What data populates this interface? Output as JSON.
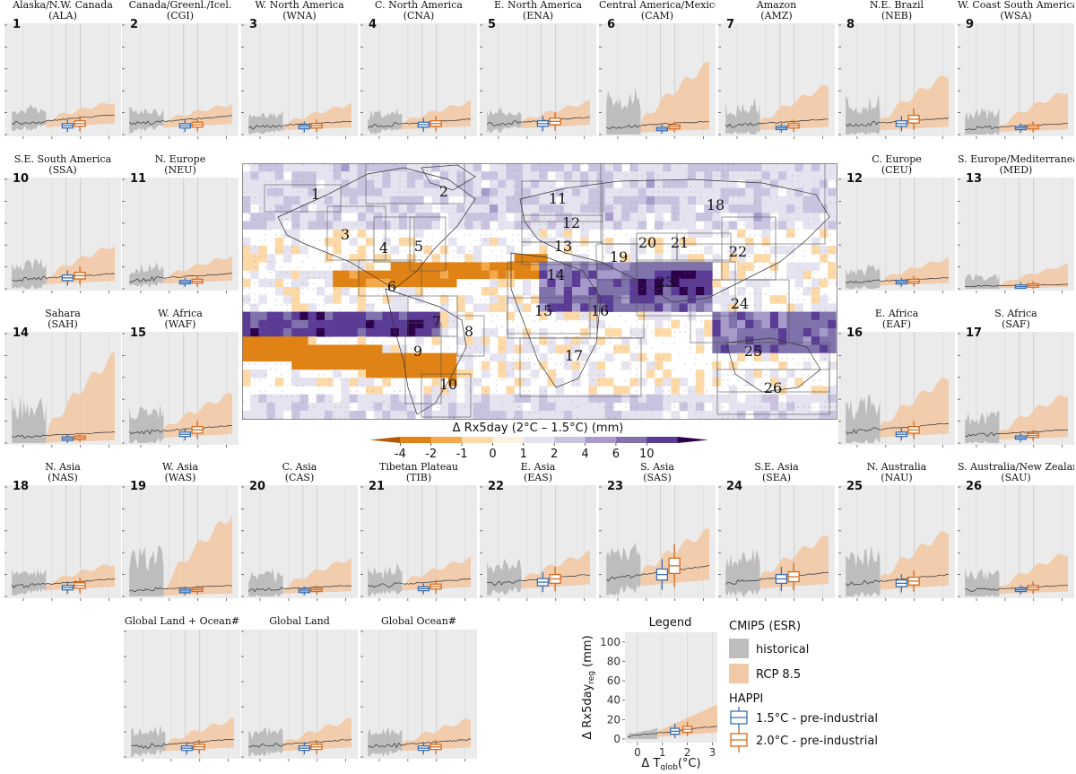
{
  "regions": [
    {
      "num": "1",
      "name": "Alaska/N.W. Canada",
      "code": "(ALA)"
    },
    {
      "num": "2",
      "name": "Canada/Greenl./Icel.",
      "code": "(CGI)"
    },
    {
      "num": "3",
      "name": "W. North America",
      "code": "(WNA)"
    },
    {
      "num": "4",
      "name": "C. North America",
      "code": "(CNA)"
    },
    {
      "num": "5",
      "name": "E. North America",
      "code": "(ENA)"
    },
    {
      "num": "6",
      "name": "Central America/Mexico",
      "code": "(CAM)"
    },
    {
      "num": "7",
      "name": "Amazon",
      "code": "(AMZ)"
    },
    {
      "num": "8",
      "name": "N.E. Brazil",
      "code": "(NEB)"
    },
    {
      "num": "9",
      "name": "W. Coast South America",
      "code": "(WSA)"
    },
    {
      "num": "10",
      "name": "S.E. South America",
      "code": "(SSA)"
    },
    {
      "num": "11",
      "name": "N. Europe",
      "code": "(NEU)"
    },
    {
      "num": "12",
      "name": "C. Europe",
      "code": "(CEU)"
    },
    {
      "num": "13",
      "name": "S. Europe/Mediterranean",
      "code": "(MED)"
    },
    {
      "num": "14",
      "name": "Sahara",
      "code": "(SAH)"
    },
    {
      "num": "15",
      "name": "W. Africa",
      "code": "(WAF)"
    },
    {
      "num": "16",
      "name": "E. Africa",
      "code": "(EAF)"
    },
    {
      "num": "17",
      "name": "S. Africa",
      "code": "(SAF)"
    },
    {
      "num": "18",
      "name": "N. Asia",
      "code": "(NAS)"
    },
    {
      "num": "19",
      "name": "W. Asia",
      "code": "(WAS)"
    },
    {
      "num": "20",
      "name": "C. Asia",
      "code": "(CAS)"
    },
    {
      "num": "21",
      "name": "Tibetan Plateau",
      "code": "(TIB)"
    },
    {
      "num": "22",
      "name": "E. Asia",
      "code": "(EAS)"
    },
    {
      "num": "23",
      "name": "S. Asia",
      "code": "(SAS)"
    },
    {
      "num": "24",
      "name": "S.E. Asia",
      "code": "(SEA)"
    },
    {
      "num": "25",
      "name": "N. Australia",
      "code": "(NAU)"
    },
    {
      "num": "26",
      "name": "S. Australia/New Zealand",
      "code": "(SAU)"
    }
  ],
  "global_panels": [
    "Global Land + Ocean#",
    "Global Land",
    "Global Ocean#"
  ],
  "map": {
    "colorbar_title": "Δ Rx5day  (2°C – 1.5°C) (mm)",
    "colorbar_ticks": [
      "-4",
      "-2",
      "-1",
      "0",
      "1",
      "2",
      "4",
      "6",
      "10"
    ],
    "colorbar_colors": [
      "#b35806",
      "#e08214",
      "#f5a94a",
      "#fdd9a8",
      "#fcf0e0",
      "#e6e3f0",
      "#c9c3e0",
      "#a79bcc",
      "#8073ac",
      "#5a3b96",
      "#2d004b"
    ],
    "region_labels": [
      "1",
      "2",
      "3",
      "4",
      "5",
      "6",
      "7",
      "8",
      "9",
      "10",
      "11",
      "12",
      "13",
      "14",
      "15",
      "16",
      "17",
      "18",
      "19",
      "20",
      "21",
      "22",
      "23",
      "24",
      "25",
      "26"
    ]
  },
  "legend": {
    "title": "Legend",
    "ylabel": "Δ Rx5day",
    "ylabel_sub": "reg",
    "ylabel_unit": " (mm)",
    "xlabel": "Δ T",
    "xlabel_sub": "glob",
    "xlabel_unit": "(°C)",
    "yticks": [
      "0",
      "20",
      "40",
      "60",
      "80",
      "100"
    ],
    "xticks": [
      "0",
      "1",
      "2",
      "3"
    ],
    "cmip_header": "CMIP5 (ESR)",
    "historical": "historical",
    "rcp": "RCP 8.5",
    "happi_header": "HAPPI",
    "happi_15": "1.5°C - pre-industrial",
    "happi_20": "2.0°C - pre-industrial"
  },
  "colors": {
    "panel_bg": "#ebebeb",
    "historical": "#bdbdbd",
    "rcp": "#f2c9a6",
    "blue": "#3a6fb5",
    "orange": "#d66a1c"
  },
  "chart_data": {
    "type": "area",
    "ylim": [
      0,
      100
    ],
    "xlim": [
      -0.5,
      3.2
    ],
    "shared_x_ticks": [
      0,
      1,
      2,
      3
    ],
    "shared_y_ticks": [
      0,
      20,
      40,
      60,
      80,
      100
    ],
    "boxes": [
      "HAPPI 1.5°C at ΔT≈1.5",
      "HAPPI 2.0°C at ΔT≈2.0"
    ],
    "region_ranges": [
      {
        "num": "1",
        "rcp_upper_end": 30,
        "median_end": 18,
        "box15": 8,
        "box20": 10
      },
      {
        "num": "2",
        "rcp_upper_end": 28,
        "median_end": 17,
        "box15": 8,
        "box20": 9
      },
      {
        "num": "3",
        "rcp_upper_end": 28,
        "median_end": 12,
        "box15": 7,
        "box20": 8
      },
      {
        "num": "4",
        "rcp_upper_end": 30,
        "median_end": 14,
        "box15": 9,
        "box20": 10
      },
      {
        "num": "5",
        "rcp_upper_end": 30,
        "median_end": 16,
        "box15": 10,
        "box20": 12
      },
      {
        "num": "6",
        "rcp_upper_end": 65,
        "median_end": 12,
        "box15": 5,
        "box20": 7
      },
      {
        "num": "7",
        "rcp_upper_end": 45,
        "median_end": 14,
        "box15": 6,
        "box20": 8
      },
      {
        "num": "8",
        "rcp_upper_end": 55,
        "median_end": 15,
        "box15": 10,
        "box20": 14
      },
      {
        "num": "9",
        "rcp_upper_end": 40,
        "median_end": 10,
        "box15": 6,
        "box20": 7
      },
      {
        "num": "10",
        "rcp_upper_end": 40,
        "median_end": 14,
        "box15": 10,
        "box20": 12
      },
      {
        "num": "11",
        "rcp_upper_end": 30,
        "median_end": 14,
        "box15": 6,
        "box20": 7
      },
      {
        "num": "12",
        "rcp_upper_end": 28,
        "median_end": 10,
        "box15": 6,
        "box20": 7
      },
      {
        "num": "13",
        "rcp_upper_end": 22,
        "median_end": 4,
        "box15": 2,
        "box20": 3
      },
      {
        "num": "14",
        "rcp_upper_end": 80,
        "median_end": 10,
        "box15": 4,
        "box20": 5
      },
      {
        "num": "15",
        "rcp_upper_end": 45,
        "median_end": 16,
        "box15": 8,
        "box20": 12
      },
      {
        "num": "16",
        "rcp_upper_end": 60,
        "median_end": 18,
        "box15": 8,
        "box20": 12
      },
      {
        "num": "17",
        "rcp_upper_end": 45,
        "median_end": 12,
        "box15": 5,
        "box20": 7
      },
      {
        "num": "18",
        "rcp_upper_end": 30,
        "median_end": 16,
        "box15": 8,
        "box20": 10
      },
      {
        "num": "19",
        "rcp_upper_end": 75,
        "median_end": 10,
        "box15": 5,
        "box20": 6
      },
      {
        "num": "20",
        "rcp_upper_end": 35,
        "median_end": 10,
        "box15": 5,
        "box20": 6
      },
      {
        "num": "21",
        "rcp_upper_end": 35,
        "median_end": 16,
        "box15": 7,
        "box20": 9
      },
      {
        "num": "22",
        "rcp_upper_end": 40,
        "median_end": 20,
        "box15": 13,
        "box20": 16
      },
      {
        "num": "23",
        "rcp_upper_end": 60,
        "median_end": 28,
        "box15": 20,
        "box20": 28
      },
      {
        "num": "24",
        "rcp_upper_end": 55,
        "median_end": 22,
        "box15": 16,
        "box20": 18
      },
      {
        "num": "25",
        "rcp_upper_end": 60,
        "median_end": 20,
        "box15": 12,
        "box20": 14
      },
      {
        "num": "26",
        "rcp_upper_end": 40,
        "median_end": 10,
        "box15": 6,
        "box20": 8
      }
    ]
  }
}
